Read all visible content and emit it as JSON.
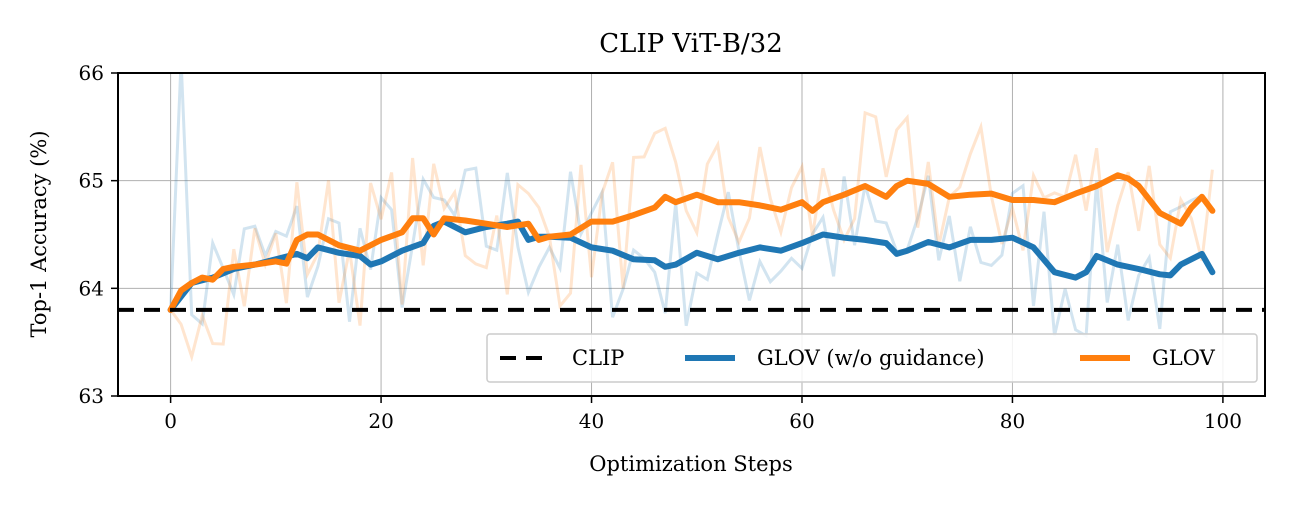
{
  "chart_data": {
    "type": "line",
    "title": "CLIP ViT-B/32",
    "xlabel": "Optimization Steps",
    "ylabel": "Top-1 Accuracy (%)",
    "xlim": [
      -5,
      104
    ],
    "ylim": [
      63,
      66
    ],
    "xticks": [
      0,
      20,
      40,
      60,
      80,
      100
    ],
    "yticks": [
      63,
      64,
      65,
      66
    ],
    "grid": true,
    "legend_position": "lower-right",
    "baseline": {
      "name": "CLIP",
      "value": 63.8,
      "style": "dashed",
      "color": "#000000"
    },
    "series": [
      {
        "name": "GLOV (w/o guidance)",
        "color": "#1f77b4",
        "x": [
          0,
          2,
          4,
          6,
          8,
          10,
          12,
          13,
          14,
          16,
          18,
          19,
          20,
          22,
          24,
          25,
          26,
          28,
          30,
          32,
          33,
          34,
          35,
          36,
          38,
          40,
          42,
          44,
          46,
          47,
          48,
          50,
          52,
          54,
          56,
          58,
          60,
          62,
          64,
          66,
          68,
          69,
          70,
          72,
          74,
          76,
          78,
          80,
          82,
          84,
          86,
          87,
          88,
          90,
          92,
          94,
          95,
          96,
          98,
          99
        ],
        "values": [
          63.8,
          64.05,
          64.1,
          64.18,
          64.22,
          64.27,
          64.32,
          64.28,
          64.38,
          64.33,
          64.3,
          64.22,
          64.25,
          64.35,
          64.42,
          64.58,
          64.62,
          64.52,
          64.57,
          64.6,
          64.62,
          64.45,
          64.48,
          64.48,
          64.47,
          64.38,
          64.35,
          64.27,
          64.26,
          64.2,
          64.22,
          64.33,
          64.27,
          64.33,
          64.38,
          64.35,
          64.42,
          64.5,
          64.47,
          64.45,
          64.42,
          64.32,
          64.35,
          64.43,
          64.38,
          64.45,
          64.45,
          64.47,
          64.38,
          64.15,
          64.1,
          64.15,
          64.3,
          64.22,
          64.18,
          64.13,
          64.12,
          64.22,
          64.32,
          64.15
        ]
      },
      {
        "name": "GLOV",
        "color": "#ff7f0e",
        "x": [
          0,
          1,
          2,
          3,
          4,
          5,
          6,
          8,
          10,
          11,
          12,
          13,
          14,
          16,
          18,
          20,
          22,
          23,
          24,
          25,
          26,
          28,
          30,
          32,
          34,
          35,
          36,
          38,
          40,
          42,
          44,
          46,
          47,
          48,
          50,
          52,
          54,
          56,
          58,
          60,
          61,
          62,
          64,
          66,
          67,
          68,
          69,
          70,
          72,
          74,
          76,
          78,
          80,
          82,
          84,
          86,
          88,
          90,
          91,
          92,
          94,
          96,
          97,
          98,
          99
        ],
        "values": [
          63.8,
          63.98,
          64.05,
          64.1,
          64.08,
          64.18,
          64.2,
          64.22,
          64.25,
          64.23,
          64.45,
          64.5,
          64.5,
          64.4,
          64.35,
          64.45,
          64.52,
          64.65,
          64.65,
          64.5,
          64.65,
          64.63,
          64.6,
          64.57,
          64.6,
          64.45,
          64.48,
          64.5,
          64.62,
          64.62,
          64.68,
          64.75,
          64.85,
          64.8,
          64.87,
          64.8,
          64.8,
          64.77,
          64.73,
          64.8,
          64.72,
          64.8,
          64.87,
          64.95,
          64.9,
          64.85,
          64.95,
          65.0,
          64.97,
          64.85,
          64.87,
          64.88,
          64.82,
          64.82,
          64.8,
          64.88,
          64.95,
          65.05,
          65.02,
          64.95,
          64.7,
          64.6,
          64.75,
          64.85,
          64.72
        ]
      }
    ]
  }
}
